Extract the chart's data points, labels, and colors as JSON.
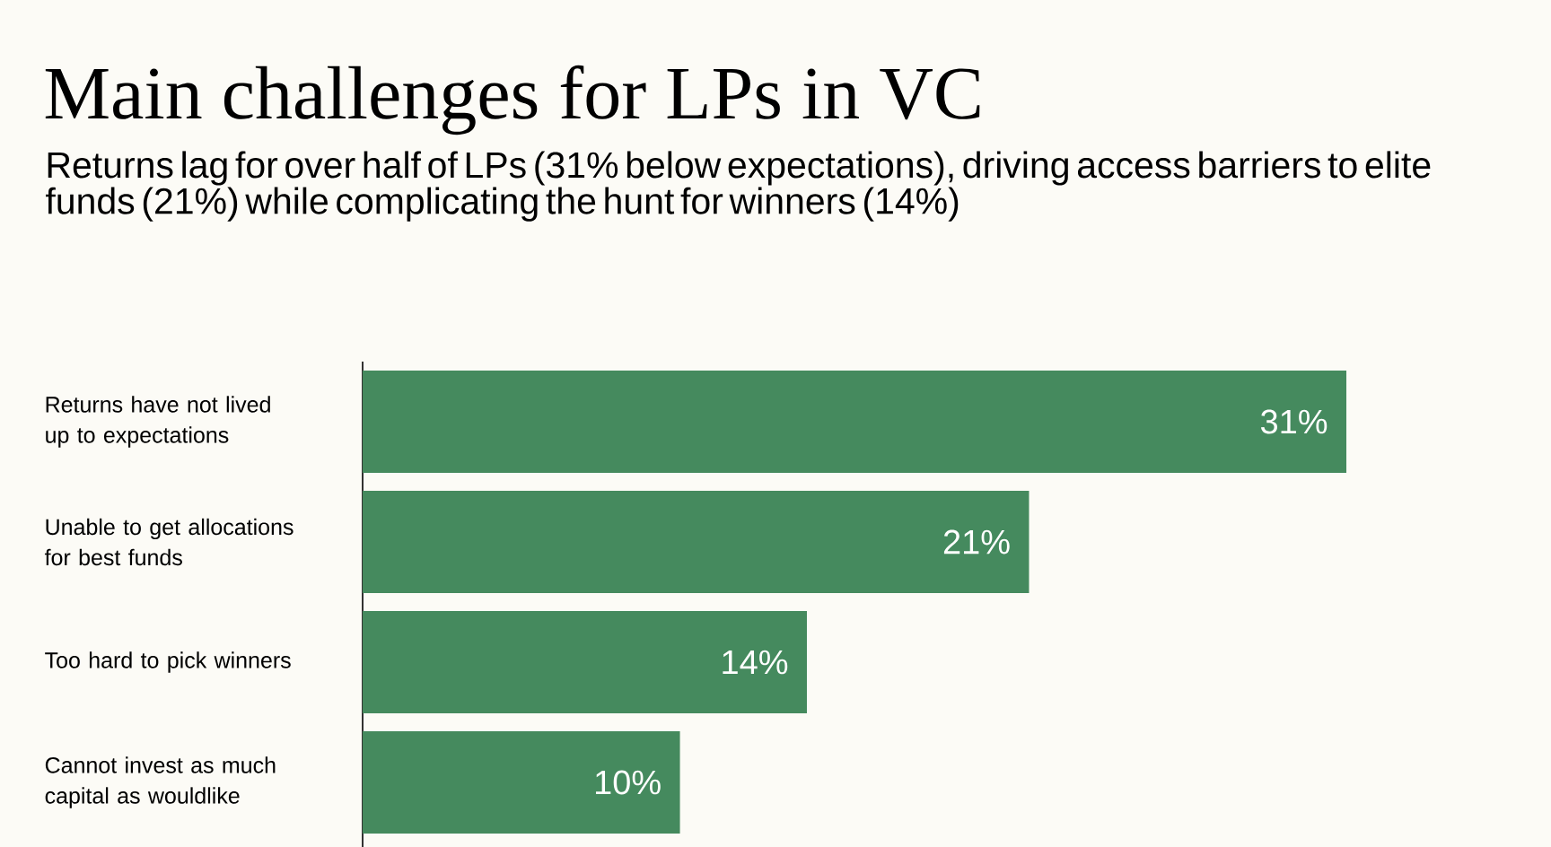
{
  "chart_data": {
    "type": "bar",
    "orientation": "horizontal",
    "title": "Main challenges for LPs in VC",
    "subtitle": "Returns lag for over half of LPs (31% below expectations), driving access barriers to elite funds (21%) while complicating the hunt for winners (14%)",
    "categories": [
      "Returns have not lived up to expectations",
      "Unable to get allocations for best funds",
      "Too hard to pick winners",
      "Cannot invest as much capital as wouldlike"
    ],
    "values": [
      31,
      21,
      14,
      10
    ],
    "value_labels": [
      "31%",
      "21%",
      "14%",
      "10%"
    ],
    "color": "#458a5e"
  }
}
